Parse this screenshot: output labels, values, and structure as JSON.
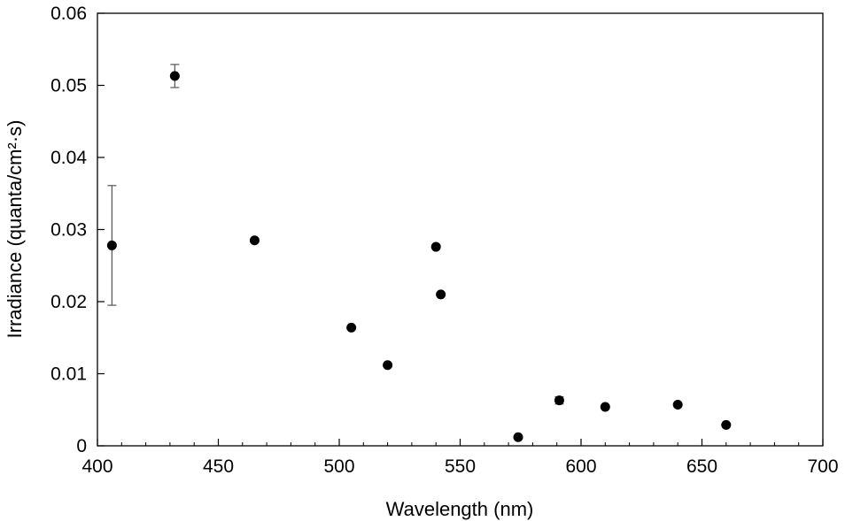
{
  "chart_data": {
    "type": "scatter",
    "title": "",
    "xlabel": "Wavelength (nm)",
    "ylabel": "Irradiance (quanta/cm²·s)",
    "xlim": [
      400,
      700
    ],
    "ylim": [
      0,
      0.06
    ],
    "x_ticks": [
      400,
      450,
      500,
      550,
      600,
      650,
      700
    ],
    "y_ticks": [
      0,
      0.01,
      0.02,
      0.03,
      0.04,
      0.05,
      0.06
    ],
    "x_tick_labels": [
      "400",
      "450",
      "500",
      "550",
      "600",
      "650",
      "700"
    ],
    "y_tick_labels": [
      "0",
      "0.01",
      "0.02",
      "0.03",
      "0.04",
      "0.05",
      "0.06"
    ],
    "grid": false,
    "legend": "none",
    "marker_color": "#000000",
    "points": [
      {
        "x": 406,
        "y": 0.0278,
        "err": 0.0083
      },
      {
        "x": 432,
        "y": 0.0513,
        "err": 0.0016
      },
      {
        "x": 465,
        "y": 0.0285,
        "err": 0
      },
      {
        "x": 505,
        "y": 0.0164,
        "err": 0
      },
      {
        "x": 520,
        "y": 0.0112,
        "err": 0
      },
      {
        "x": 540,
        "y": 0.0276,
        "err": 0
      },
      {
        "x": 542,
        "y": 0.021,
        "err": 0
      },
      {
        "x": 574,
        "y": 0.0012,
        "err": 0
      },
      {
        "x": 591,
        "y": 0.0063,
        "err": 0.0005
      },
      {
        "x": 610,
        "y": 0.0054,
        "err": 0
      },
      {
        "x": 640,
        "y": 0.0057,
        "err": 0
      },
      {
        "x": 660,
        "y": 0.0029,
        "err": 0
      }
    ]
  }
}
